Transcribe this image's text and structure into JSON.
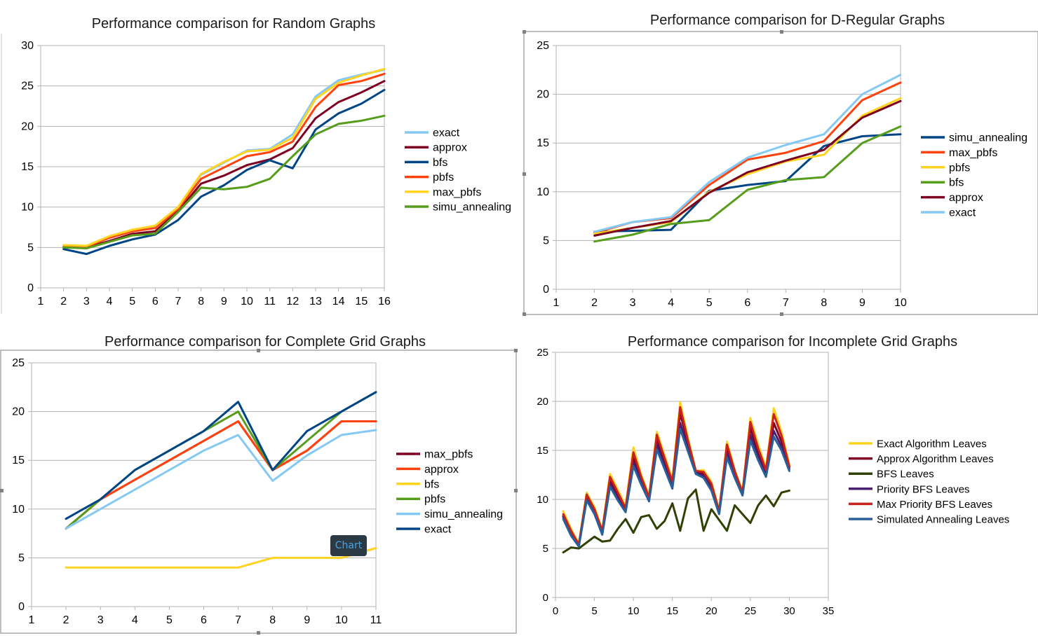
{
  "tooltip": "Chart",
  "chart_data": [
    {
      "type": "line",
      "title": "Performance comparison for Random Graphs",
      "x_ticks": [
        1,
        2,
        3,
        4,
        5,
        6,
        7,
        8,
        9,
        10,
        11,
        12,
        13,
        14,
        15,
        16
      ],
      "y_ticks": [
        0,
        5,
        10,
        15,
        20,
        25,
        30
      ],
      "xlim": [
        1,
        16
      ],
      "ylim": [
        0,
        30
      ],
      "grid": true,
      "legend": "right",
      "x": [
        2,
        3,
        4,
        5,
        6,
        7,
        8,
        9,
        10,
        11,
        12,
        13,
        14,
        15,
        16
      ],
      "series": [
        {
          "name": "exact",
          "color": "#83c9f4",
          "values": [
            5.2,
            5.1,
            6.3,
            7.1,
            7.6,
            10.0,
            14.0,
            15.5,
            17.0,
            17.2,
            19.0,
            23.7,
            25.7,
            26.4,
            27.0
          ]
        },
        {
          "name": "approx",
          "color": "#7e0021",
          "values": [
            5.0,
            5.0,
            5.8,
            6.7,
            7.0,
            9.5,
            12.9,
            13.9,
            15.2,
            15.9,
            17.3,
            21.0,
            23.0,
            24.2,
            25.6
          ]
        },
        {
          "name": "bfs",
          "color": "#004586",
          "values": [
            4.8,
            4.2,
            5.2,
            6.0,
            6.6,
            8.4,
            11.3,
            12.7,
            14.6,
            15.8,
            14.8,
            19.6,
            21.6,
            22.8,
            24.5
          ]
        },
        {
          "name": "pbfs",
          "color": "#ff420e",
          "values": [
            5.1,
            5.1,
            6.2,
            7.0,
            7.4,
            9.8,
            13.5,
            14.9,
            16.3,
            16.8,
            18.1,
            22.4,
            25.1,
            25.6,
            26.5
          ]
        },
        {
          "name": "max_pbfs",
          "color": "#ffd320",
          "values": [
            5.3,
            5.2,
            6.4,
            7.2,
            7.7,
            10.0,
            14.1,
            15.6,
            16.9,
            17.1,
            18.6,
            23.4,
            25.4,
            26.3,
            27.1
          ]
        },
        {
          "name": "simu_annealing",
          "color": "#579d1c",
          "values": [
            5.0,
            4.9,
            5.7,
            6.5,
            6.7,
            9.4,
            12.4,
            12.2,
            12.5,
            13.5,
            16.3,
            19.0,
            20.3,
            20.7,
            21.3
          ]
        }
      ]
    },
    {
      "type": "line",
      "title": "Performance comparison for D-Regular Graphs",
      "x_ticks": [
        1,
        2,
        3,
        4,
        5,
        6,
        7,
        8,
        9,
        10
      ],
      "y_ticks": [
        0,
        5,
        10,
        15,
        20,
        25
      ],
      "xlim": [
        1,
        10
      ],
      "ylim": [
        0,
        25
      ],
      "grid": true,
      "legend": "right",
      "x": [
        2,
        3,
        4,
        5,
        6,
        7,
        8,
        9,
        10
      ],
      "series": [
        {
          "name": "simu_annealing",
          "color": "#004586",
          "values": [
            5.9,
            6.0,
            6.1,
            10.1,
            10.7,
            11.1,
            14.7,
            15.7,
            15.9
          ]
        },
        {
          "name": "max_pbfs",
          "color": "#ff420e",
          "values": [
            5.8,
            6.9,
            7.3,
            10.7,
            13.3,
            14.0,
            15.2,
            19.4,
            21.2
          ]
        },
        {
          "name": "pbfs",
          "color": "#ffd320",
          "values": [
            5.7,
            6.3,
            6.9,
            10.0,
            11.8,
            13.1,
            13.8,
            17.8,
            19.6
          ]
        },
        {
          "name": "bfs",
          "color": "#579d1c",
          "values": [
            4.9,
            5.6,
            6.7,
            7.1,
            10.2,
            11.2,
            11.5,
            15.0,
            16.7
          ]
        },
        {
          "name": "approx",
          "color": "#7e0021",
          "values": [
            5.5,
            6.3,
            7.0,
            9.9,
            12.0,
            13.2,
            14.3,
            17.6,
            19.3
          ]
        },
        {
          "name": "exact",
          "color": "#83c9f4",
          "values": [
            5.9,
            6.9,
            7.4,
            11.0,
            13.5,
            14.8,
            15.9,
            20.0,
            22.0
          ]
        }
      ]
    },
    {
      "type": "line",
      "title": "Performance comparison for Complete Grid Graphs",
      "x_ticks": [
        1,
        2,
        3,
        4,
        5,
        6,
        7,
        8,
        9,
        10,
        11
      ],
      "y_ticks": [
        0,
        5,
        10,
        15,
        20,
        25
      ],
      "xlim": [
        1,
        11
      ],
      "ylim": [
        0,
        25
      ],
      "grid": true,
      "legend": "right",
      "x": [
        2,
        3,
        4,
        5,
        6,
        7,
        8,
        9,
        10,
        11
      ],
      "series": [
        {
          "name": "max_pbfs",
          "color": "#7e0021",
          "values": [
            8,
            11,
            13,
            15,
            17,
            19,
            14,
            16,
            19,
            19
          ]
        },
        {
          "name": "approx",
          "color": "#ff420e",
          "values": [
            8,
            11,
            13,
            15,
            17,
            19,
            14,
            16,
            19,
            19
          ]
        },
        {
          "name": "bfs",
          "color": "#ffd320",
          "values": [
            4,
            4,
            4,
            4,
            4,
            4,
            5,
            5,
            5,
            6
          ]
        },
        {
          "name": "pbfs",
          "color": "#579d1c",
          "values": [
            8,
            11,
            14,
            16,
            18,
            20,
            14,
            17,
            20,
            22
          ]
        },
        {
          "name": "simu_annealing",
          "color": "#83c9f4",
          "values": [
            8,
            10,
            12,
            14,
            16,
            17.6,
            12.9,
            15.5,
            17.6,
            18.1
          ]
        },
        {
          "name": "exact",
          "color": "#004586",
          "values": [
            9,
            11,
            14,
            16,
            18,
            21,
            14,
            18,
            20,
            22
          ]
        }
      ]
    },
    {
      "type": "line",
      "title": "Performance comparison for Incomplete Grid Graphs",
      "x_ticks": [
        0,
        5,
        10,
        15,
        20,
        25,
        30,
        35
      ],
      "y_ticks": [
        0,
        5,
        10,
        15,
        20,
        25
      ],
      "xlim": [
        0,
        35
      ],
      "ylim": [
        0,
        25
      ],
      "grid": true,
      "legend": "right",
      "x": [
        1,
        2,
        3,
        4,
        5,
        6,
        7,
        8,
        9,
        10,
        11,
        12,
        13,
        14,
        15,
        16,
        17,
        18,
        19,
        20,
        21,
        22,
        23,
        24,
        25,
        26,
        27,
        28,
        29,
        30
      ],
      "series": [
        {
          "name": "Exact Algorithm Leaves",
          "color": "#ffd320",
          "values": [
            8.8,
            7.0,
            5.5,
            10.7,
            9.2,
            6.9,
            12.6,
            11.0,
            9.3,
            15.3,
            12.5,
            10.4,
            16.9,
            14.5,
            12.0,
            19.9,
            16.3,
            12.9,
            13.0,
            11.8,
            8.9,
            15.9,
            13.0,
            10.8,
            18.3,
            15.6,
            13.2,
            19.3,
            16.9,
            13.5
          ]
        },
        {
          "name": "Approx Algorithm Leaves",
          "color": "#7e0021",
          "values": [
            8.3,
            6.6,
            5.3,
            10.3,
            8.8,
            6.6,
            12.0,
            10.4,
            8.9,
            14.3,
            12.0,
            10.0,
            16.2,
            13.8,
            11.5,
            18.8,
            15.7,
            12.8,
            12.6,
            11.3,
            8.7,
            15.2,
            12.7,
            10.6,
            17.3,
            14.8,
            12.6,
            17.8,
            15.9,
            13.3
          ]
        },
        {
          "name": "BFS Leaves",
          "color": "#314004",
          "values": [
            4.6,
            5.1,
            5.0,
            5.6,
            6.2,
            5.7,
            5.8,
            7.0,
            8.0,
            6.6,
            8.2,
            8.4,
            7.0,
            7.8,
            9.6,
            6.8,
            10.1,
            11.0,
            6.8,
            9.0,
            7.9,
            6.8,
            9.4,
            8.5,
            7.6,
            9.4,
            10.4,
            9.3,
            10.7,
            10.9
          ]
        },
        {
          "name": "Priority BFS Leaves",
          "color": "#4b1f6f",
          "values": [
            8.2,
            6.5,
            5.3,
            10.1,
            8.7,
            6.5,
            11.6,
            10.1,
            8.8,
            13.8,
            11.7,
            9.9,
            15.6,
            13.4,
            11.3,
            17.8,
            15.2,
            12.7,
            12.4,
            11.1,
            8.6,
            14.7,
            12.4,
            10.5,
            16.6,
            14.3,
            12.4,
            17.0,
            15.4,
            13.1
          ]
        },
        {
          "name": "Max Priority BFS Leaves",
          "color": "#c9211e",
          "values": [
            8.5,
            6.8,
            5.4,
            10.5,
            9.0,
            6.8,
            12.3,
            10.7,
            9.1,
            14.8,
            12.3,
            10.2,
            16.6,
            14.2,
            11.8,
            19.4,
            16.0,
            12.9,
            12.8,
            11.6,
            8.8,
            15.6,
            12.9,
            10.7,
            17.9,
            15.2,
            13.0,
            18.7,
            16.5,
            13.4
          ]
        },
        {
          "name": "Simulated Annealing Leaves",
          "color": "#2a6099",
          "values": [
            8.0,
            6.3,
            5.2,
            9.9,
            8.5,
            6.4,
            11.3,
            9.9,
            8.7,
            13.4,
            11.5,
            9.8,
            15.1,
            13.1,
            11.1,
            17.2,
            14.9,
            12.6,
            12.2,
            10.9,
            8.5,
            14.3,
            12.2,
            10.4,
            16.0,
            14.0,
            12.3,
            16.4,
            15.0,
            12.9
          ]
        }
      ]
    }
  ]
}
